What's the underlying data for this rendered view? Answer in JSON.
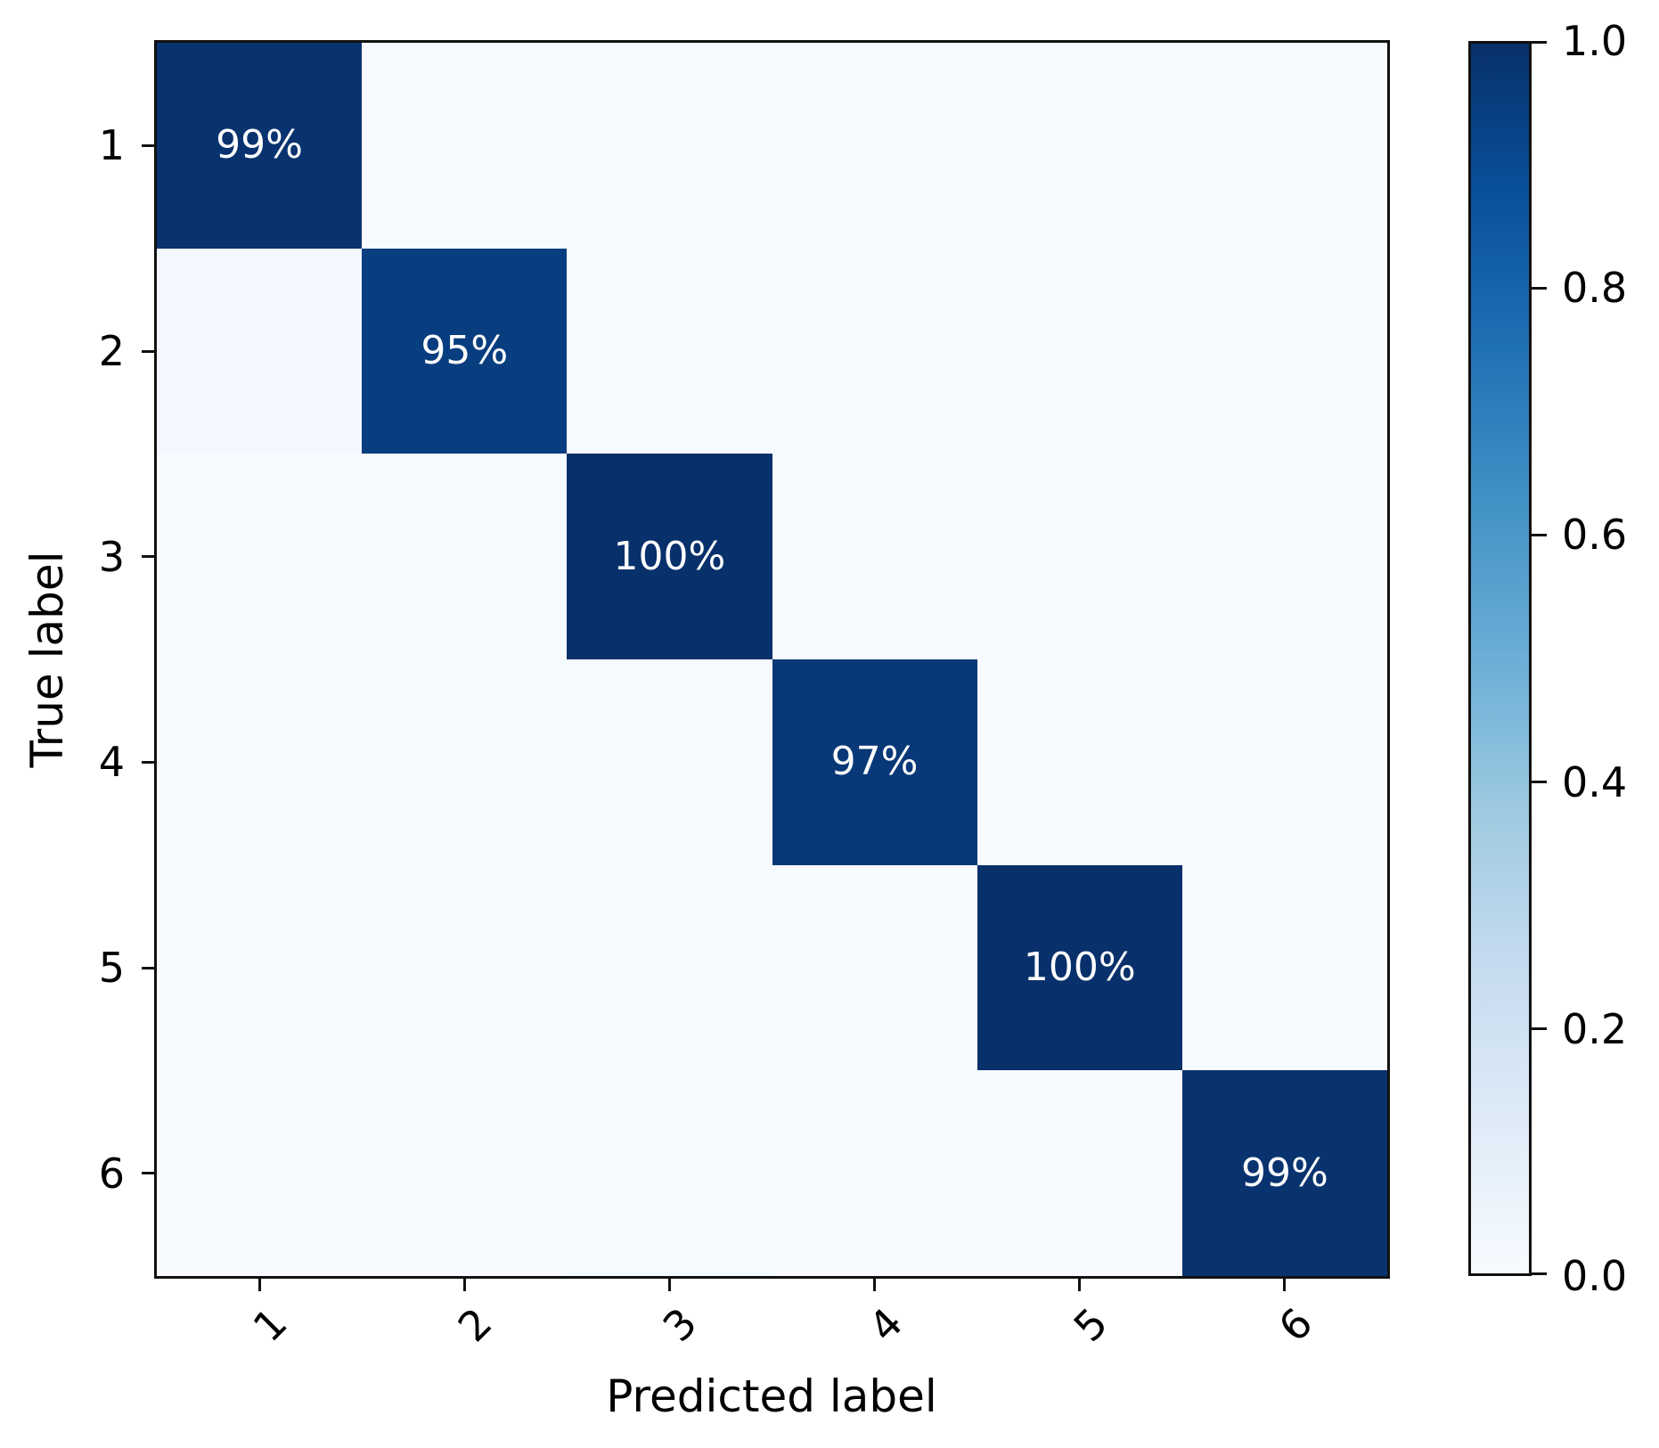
{
  "figure": {
    "background": "#ffffff",
    "axis_color": "#111111",
    "text_color": "#000000"
  },
  "chart_data": {
    "type": "heatmap",
    "title": "",
    "xlabel": "Predicted label",
    "ylabel": "True label",
    "x_ticklabels": [
      "1",
      "2",
      "3",
      "4",
      "5",
      "6"
    ],
    "y_ticklabels": [
      "1",
      "2",
      "3",
      "4",
      "5",
      "6"
    ],
    "value_range": [
      0.0,
      1.0
    ],
    "matrix": [
      [
        0.99,
        0.0,
        0.0,
        0.0,
        0.0,
        0.0
      ],
      [
        0.02,
        0.95,
        0.01,
        0.01,
        0.01,
        0.0
      ],
      [
        0.0,
        0.0,
        1.0,
        0.0,
        0.0,
        0.0
      ],
      [
        0.01,
        0.01,
        0.0,
        0.97,
        0.0,
        0.01
      ],
      [
        0.0,
        0.0,
        0.0,
        0.0,
        1.0,
        0.0
      ],
      [
        0.0,
        0.0,
        0.01,
        0.0,
        0.0,
        0.99
      ]
    ],
    "diagonal_labels": [
      "99%",
      "95%",
      "100%",
      "97%",
      "100%",
      "99%"
    ],
    "cell_text_color": "#ffffff",
    "grid": false,
    "colormap": {
      "name": "Blues",
      "stops": [
        {
          "value": 0.0,
          "color": "#f7fbff"
        },
        {
          "value": 0.125,
          "color": "#deebf7"
        },
        {
          "value": 0.25,
          "color": "#c6dbef"
        },
        {
          "value": 0.375,
          "color": "#9ecae1"
        },
        {
          "value": 0.5,
          "color": "#6baed6"
        },
        {
          "value": 0.625,
          "color": "#4292c6"
        },
        {
          "value": 0.75,
          "color": "#2171b5"
        },
        {
          "value": 0.875,
          "color": "#08519c"
        },
        {
          "value": 1.0,
          "color": "#08306b"
        }
      ]
    },
    "colorbar": {
      "position": "right",
      "tick_values": [
        1.0,
        0.8,
        0.6,
        0.4,
        0.2,
        0.0
      ],
      "tick_labels": [
        "1.0",
        "0.8",
        "0.6",
        "0.4",
        "0.2",
        "0.0"
      ]
    }
  }
}
